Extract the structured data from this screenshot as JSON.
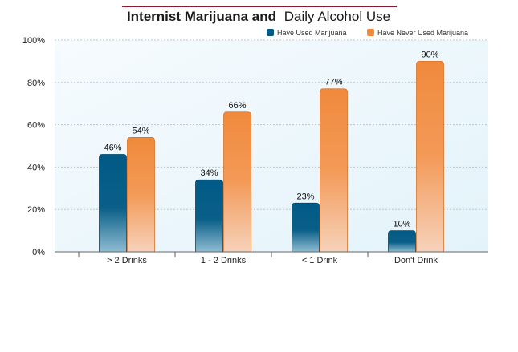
{
  "colors": {
    "title_rule": "#8b1a2b",
    "plot_bg": "#eef8fc",
    "grid": "#b9c7cf",
    "series_a_top": "#005a86",
    "series_a_bottom": "#8fbcd2",
    "series_b_top": "#f08a3c",
    "series_b_bottom": "#f6ceb4"
  },
  "chart_data": {
    "type": "bar",
    "title_bold": "Internist Marijuana and",
    "title_rest": "Daily Alcohol Use",
    "categories": [
      "> 2 Drinks",
      "1 - 2 Drinks",
      "< 1 Drink",
      "Don't Drink"
    ],
    "series": [
      {
        "name": "Have Used Marijuana",
        "values": [
          46,
          34,
          23,
          10
        ],
        "labels": [
          "46%",
          "34%",
          "23%",
          "10%"
        ]
      },
      {
        "name": "Have Never Used Marijuana",
        "values": [
          54,
          66,
          77,
          90
        ],
        "labels": [
          "54%",
          "66%",
          "77%",
          "90%"
        ]
      }
    ],
    "yticks": [
      0,
      20,
      40,
      60,
      80,
      100
    ],
    "ytick_labels": [
      "0%",
      "20%",
      "40%",
      "60%",
      "80%",
      "100%"
    ],
    "ylim": [
      0,
      100
    ],
    "grid": true,
    "legend": "top-right"
  }
}
